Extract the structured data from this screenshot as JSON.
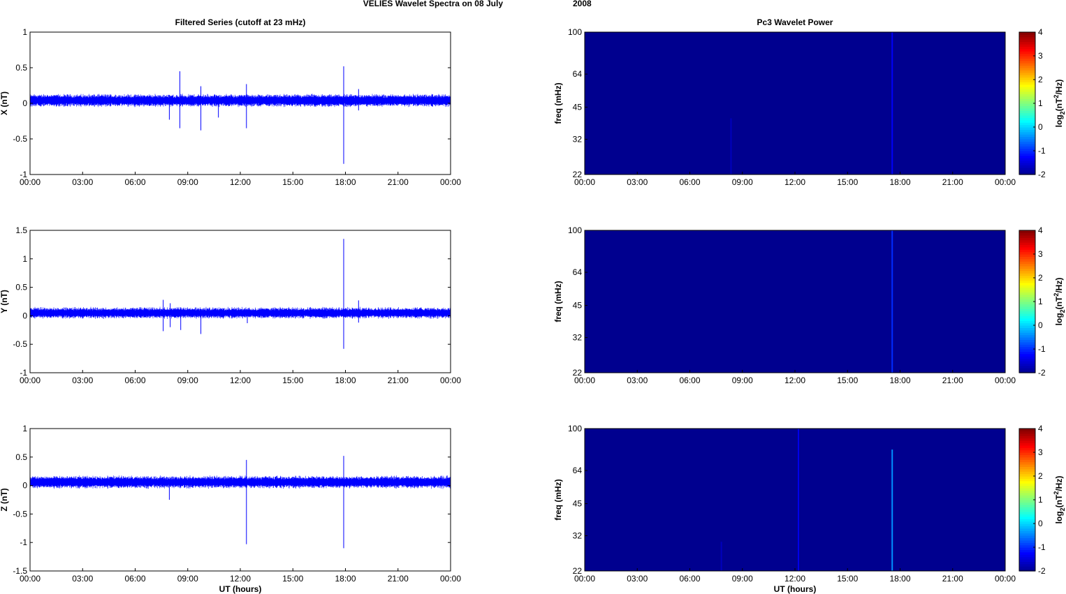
{
  "figure": {
    "title_left": "VELIES Wavelet Spectra on 08 July",
    "title_right": "2008"
  },
  "colors": {
    "trace": "#0000ff",
    "background_power": "#00008f",
    "axis": "#000000",
    "colormap": [
      "#00008f",
      "#0000ff",
      "#0080ff",
      "#00ffff",
      "#80ff80",
      "#ffff00",
      "#ff8000",
      "#ff0000",
      "#800000"
    ]
  },
  "chart_data": [
    {
      "type": "line",
      "title": "Filtered Series (cutoff at 23 mHz)",
      "ylabel": "X (nT)",
      "xlabel": "",
      "x_ticks": [
        "00:00",
        "03:00",
        "06:00",
        "09:00",
        "12:00",
        "15:00",
        "18:00",
        "21:00",
        "00:00"
      ],
      "xlim_hours": [
        0,
        24
      ],
      "ylim": [
        -1,
        1
      ],
      "y_ticks": [
        -1,
        -0.5,
        0,
        0.5,
        1
      ],
      "y_tick_labels": [
        "-1",
        "-0.5",
        "0",
        "0.5",
        "1"
      ],
      "band": {
        "baseline": 0.04,
        "amplitude": 0.08
      },
      "spikes": [
        {
          "t": 7.95,
          "min": -0.23,
          "max": 0.1
        },
        {
          "t": 8.55,
          "min": -0.35,
          "max": 0.45
        },
        {
          "t": 9.75,
          "min": -0.38,
          "max": 0.24
        },
        {
          "t": 10.75,
          "min": -0.2,
          "max": 0.1
        },
        {
          "t": 12.35,
          "min": -0.35,
          "max": 0.27
        },
        {
          "t": 17.9,
          "min": -0.85,
          "max": 0.52
        },
        {
          "t": 18.75,
          "min": -0.1,
          "max": 0.2
        }
      ]
    },
    {
      "type": "heatmap",
      "title": "Pc3 Wavelet Power",
      "ylabel": "freq (mHz)",
      "xlabel": "",
      "x_ticks": [
        "00:00",
        "03:00",
        "06:00",
        "09:00",
        "12:00",
        "15:00",
        "18:00",
        "21:00",
        "00:00"
      ],
      "xlim_hours": [
        0,
        24
      ],
      "ylim_mHz": [
        22,
        100
      ],
      "y_scale": "log",
      "y_ticks": [
        22,
        32,
        45,
        64,
        100
      ],
      "colorbar": {
        "range": [
          -2,
          4
        ],
        "ticks": [
          -2,
          -1,
          0,
          1,
          2,
          3,
          4
        ],
        "label_base": "log",
        "label_sub": "2",
        "label_mid": "(nT",
        "label_sup": "2",
        "label_tail": "/Hz)"
      },
      "background_level": -2,
      "events": [
        {
          "t": 8.35,
          "f_min": 22,
          "f_max": 40,
          "level": -1.7
        },
        {
          "t": 17.55,
          "f_min": 22,
          "f_max": 100,
          "level": -1.3
        }
      ]
    },
    {
      "type": "line",
      "title": "",
      "ylabel": "Y (nT)",
      "xlabel": "",
      "x_ticks": [
        "00:00",
        "03:00",
        "06:00",
        "09:00",
        "12:00",
        "15:00",
        "18:00",
        "21:00",
        "00:00"
      ],
      "xlim_hours": [
        0,
        24
      ],
      "ylim": [
        -1,
        1.5
      ],
      "y_ticks": [
        -1,
        -0.5,
        0,
        0.5,
        1,
        1.5
      ],
      "y_tick_labels": [
        "-1",
        "-0.5",
        "0",
        "0.5",
        "1",
        "1.5"
      ],
      "band": {
        "baseline": 0.05,
        "amplitude": 0.09
      },
      "spikes": [
        {
          "t": 7.6,
          "min": -0.27,
          "max": 0.28
        },
        {
          "t": 8.0,
          "min": -0.2,
          "max": 0.22
        },
        {
          "t": 8.6,
          "min": -0.25,
          "max": 0.15
        },
        {
          "t": 9.75,
          "min": -0.32,
          "max": 0.12
        },
        {
          "t": 12.4,
          "min": -0.13,
          "max": 0.12
        },
        {
          "t": 17.9,
          "min": -0.58,
          "max": 1.35
        },
        {
          "t": 18.75,
          "min": -0.12,
          "max": 0.27
        }
      ]
    },
    {
      "type": "heatmap",
      "title": "",
      "ylabel": "freq (mHz)",
      "xlabel": "",
      "x_ticks": [
        "00:00",
        "03:00",
        "06:00",
        "09:00",
        "12:00",
        "15:00",
        "18:00",
        "21:00",
        "00:00"
      ],
      "xlim_hours": [
        0,
        24
      ],
      "ylim_mHz": [
        22,
        100
      ],
      "y_scale": "log",
      "y_ticks": [
        22,
        32,
        45,
        64,
        100
      ],
      "colorbar": {
        "range": [
          -2,
          4
        ],
        "ticks": [
          -2,
          -1,
          0,
          1,
          2,
          3,
          4
        ],
        "label_base": "log",
        "label_sub": "2",
        "label_mid": "(nT",
        "label_sup": "2",
        "label_tail": "/Hz)"
      },
      "background_level": -2,
      "events": [
        {
          "t": 17.55,
          "f_min": 22,
          "f_max": 100,
          "level": -1.0
        }
      ]
    },
    {
      "type": "line",
      "title": "",
      "ylabel": "Z (nT)",
      "xlabel": "UT (hours)",
      "x_ticks": [
        "00:00",
        "03:00",
        "06:00",
        "09:00",
        "12:00",
        "15:00",
        "18:00",
        "21:00",
        "00:00"
      ],
      "xlim_hours": [
        0,
        24
      ],
      "ylim": [
        -1.5,
        1
      ],
      "y_ticks": [
        -1.5,
        -1,
        -0.5,
        0,
        0.5,
        1
      ],
      "y_tick_labels": [
        "-1.5",
        "-1",
        "-0.5",
        "0",
        "0.5",
        "1"
      ],
      "band": {
        "baseline": 0.06,
        "amplitude": 0.1
      },
      "spikes": [
        {
          "t": 7.95,
          "min": -0.25,
          "max": 0.1
        },
        {
          "t": 12.35,
          "min": -1.03,
          "max": 0.45
        },
        {
          "t": 17.9,
          "min": -1.1,
          "max": 0.52
        }
      ]
    },
    {
      "type": "heatmap",
      "title": "",
      "ylabel": "freq (mHz)",
      "xlabel": "UT (hours)",
      "x_ticks": [
        "00:00",
        "03:00",
        "06:00",
        "09:00",
        "12:00",
        "15:00",
        "18:00",
        "21:00",
        "00:00"
      ],
      "xlim_hours": [
        0,
        24
      ],
      "ylim_mHz": [
        22,
        100
      ],
      "y_scale": "log",
      "y_ticks": [
        22,
        32,
        45,
        64,
        100
      ],
      "colorbar": {
        "range": [
          -2,
          4
        ],
        "ticks": [
          -2,
          -1,
          0,
          1,
          2,
          3,
          4
        ],
        "label_base": "log",
        "label_sub": "2",
        "label_mid": "(nT",
        "label_sup": "2",
        "label_tail": "/Hz)"
      },
      "background_level": -2,
      "events": [
        {
          "t": 7.8,
          "f_min": 22,
          "f_max": 30,
          "level": -1.7
        },
        {
          "t": 12.2,
          "f_min": 22,
          "f_max": 100,
          "level": -1.4
        },
        {
          "t": 17.55,
          "f_min": 22,
          "f_max": 80,
          "level": -0.4
        }
      ]
    }
  ]
}
